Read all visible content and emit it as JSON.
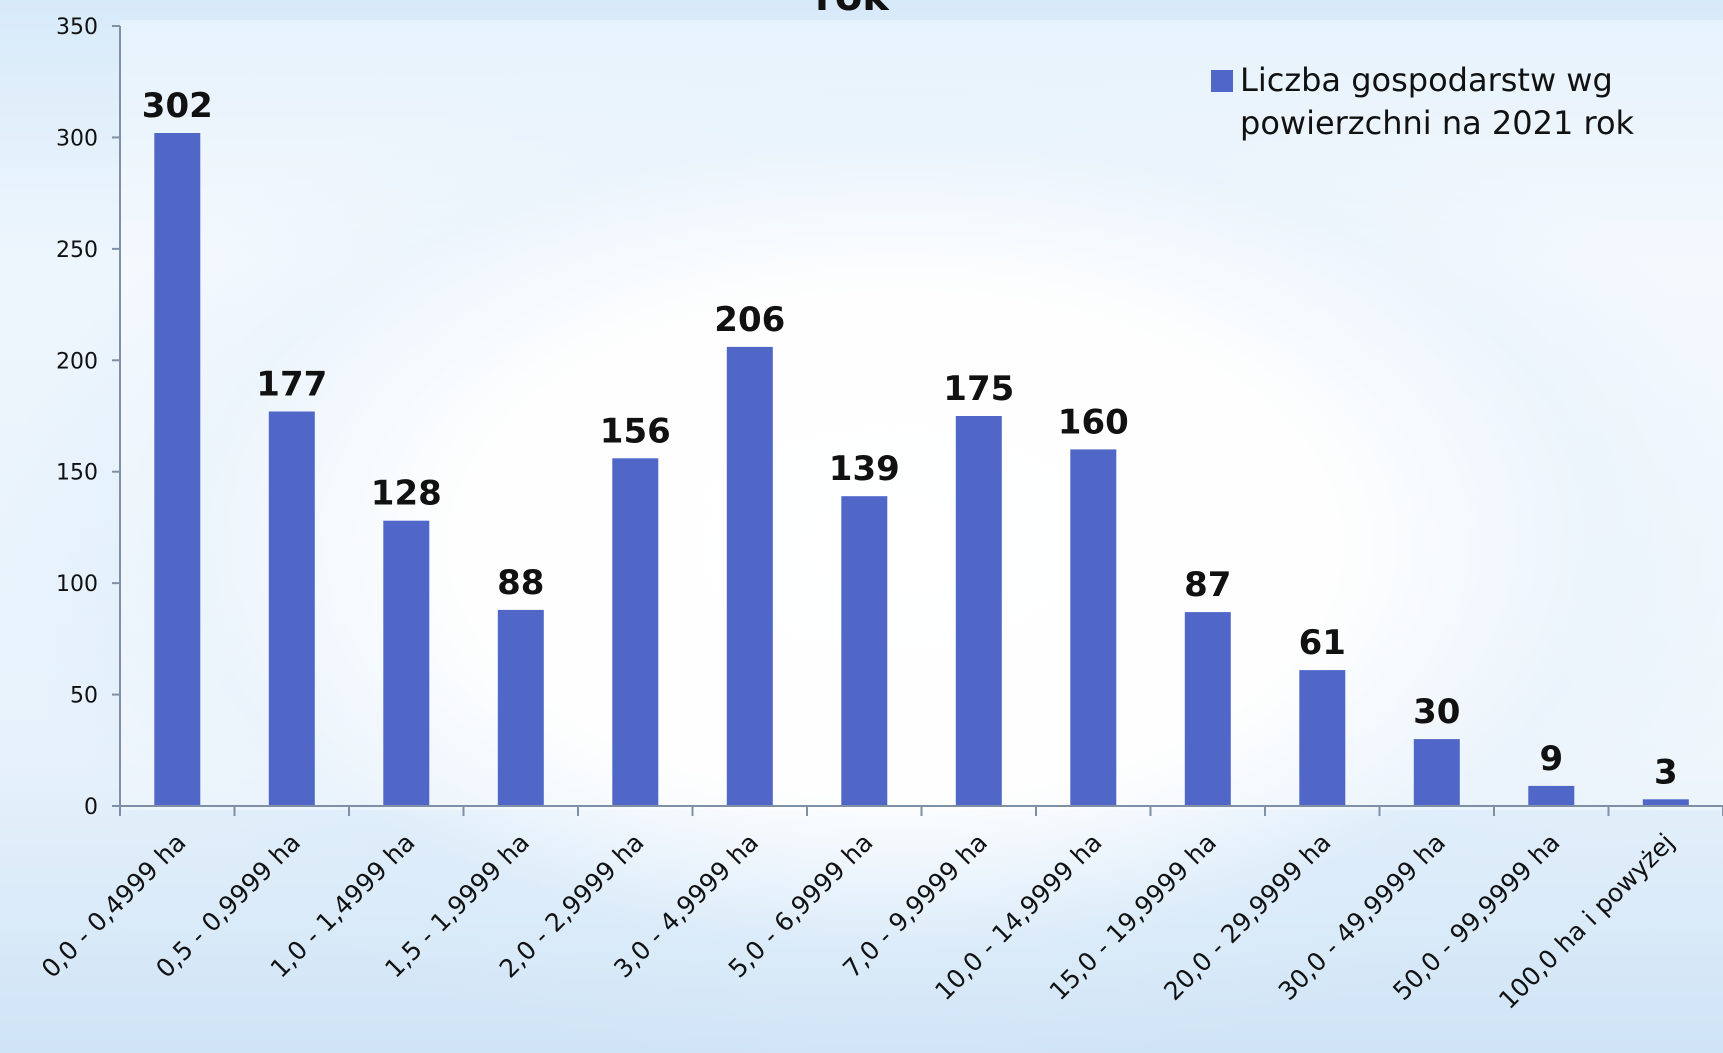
{
  "chart_data": {
    "type": "bar",
    "title": "rok",
    "xlabel": "",
    "ylabel": "",
    "ylim": [
      0,
      350
    ],
    "yticks": [
      0,
      50,
      100,
      150,
      200,
      250,
      300,
      350
    ],
    "categories": [
      "0,0 - 0,4999 ha",
      "0,5 - 0,9999 ha",
      "1,0 - 1,4999 ha",
      "1,5 - 1,9999 ha",
      "2,0 - 2,9999 ha",
      "3,0 - 4,9999 ha",
      "5,0 - 6,9999 ha",
      "7,0 - 9,9999 ha",
      "10,0 - 14,9999 ha",
      "15,0 - 19,9999 ha",
      "20,0 - 29,9999 ha",
      "30,0 - 49,9999 ha",
      "50,0 - 99,9999 ha",
      "100,0 ha i powyżej"
    ],
    "series": [
      {
        "name": "Liczba gospodarstw wg powierzchni na 2021 rok",
        "legend_lines": [
          "Liczba gospodarstw wg",
          "powierzchni na 2021 rok"
        ],
        "color": "#5067c8",
        "values": [
          302,
          177,
          128,
          88,
          156,
          206,
          139,
          175,
          160,
          87,
          61,
          30,
          9,
          3
        ]
      }
    ],
    "grid": false,
    "legend_position": "top-right",
    "data_labels": true
  },
  "colors": {
    "bar": "#5067c8",
    "axis": "#7f8fa6",
    "text": "#111111"
  }
}
